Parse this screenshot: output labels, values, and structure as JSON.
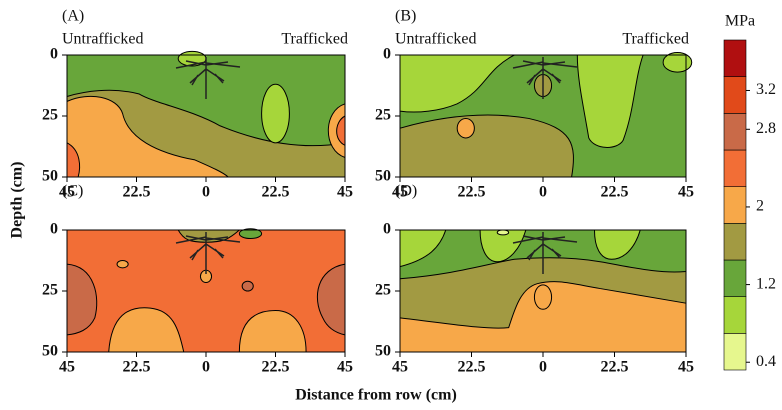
{
  "chart_data": [
    {
      "type": "contour",
      "panel": "(A)",
      "left_label": "Untrafficked",
      "right_label": "Trafficked",
      "xlim": [
        -45,
        45
      ],
      "ylim": [
        0,
        50
      ],
      "xticks": [
        {
          "value": -45,
          "label": "45"
        },
        {
          "value": -22.5,
          "label": "22.5"
        },
        0,
        22.5,
        45
      ],
      "yticks": [
        0,
        25,
        50
      ]
    },
    {
      "type": "contour",
      "panel": "(B)",
      "left_label": "Untrafficked",
      "right_label": "Trafficked",
      "xlim": [
        -45,
        45
      ],
      "ylim": [
        0,
        50
      ],
      "xticks": [
        {
          "value": -45,
          "label": "45"
        },
        {
          "value": -22.5,
          "label": "22.5"
        },
        0,
        22.5,
        45
      ],
      "yticks": [
        0,
        25,
        50
      ]
    },
    {
      "type": "contour",
      "panel": "(C)",
      "xlim": [
        -45,
        45
      ],
      "ylim": [
        0,
        50
      ],
      "xticks": [
        {
          "value": -45,
          "label": "45"
        },
        {
          "value": -22.5,
          "label": "22.5"
        },
        0,
        22.5,
        45
      ],
      "yticks": [
        0,
        25,
        50
      ]
    },
    {
      "type": "contour",
      "panel": "(D)",
      "xlim": [
        -45,
        45
      ],
      "ylim": [
        0,
        50
      ],
      "xticks": [
        {
          "value": -45,
          "label": "45"
        },
        {
          "value": -22.5,
          "label": "22.5"
        },
        0,
        22.5,
        45
      ],
      "yticks": [
        0,
        25,
        50
      ]
    },
    {
      "type": "colorbar",
      "unit": "MPa",
      "ylim": [
        0.32,
        3.72
      ],
      "yticks": [
        0.4,
        1.2,
        2.0,
        2.8,
        3.2
      ],
      "colors": [
        "#e6f78e",
        "#a6d63a",
        "#68a63a",
        "#a29a42",
        "#f7a849",
        "#f26e36",
        "#c96a48",
        "#e14a1a",
        "#b00f10"
      ]
    }
  ],
  "y_label": "Depth (cm)",
  "x_label": "Distance from row (cm)"
}
